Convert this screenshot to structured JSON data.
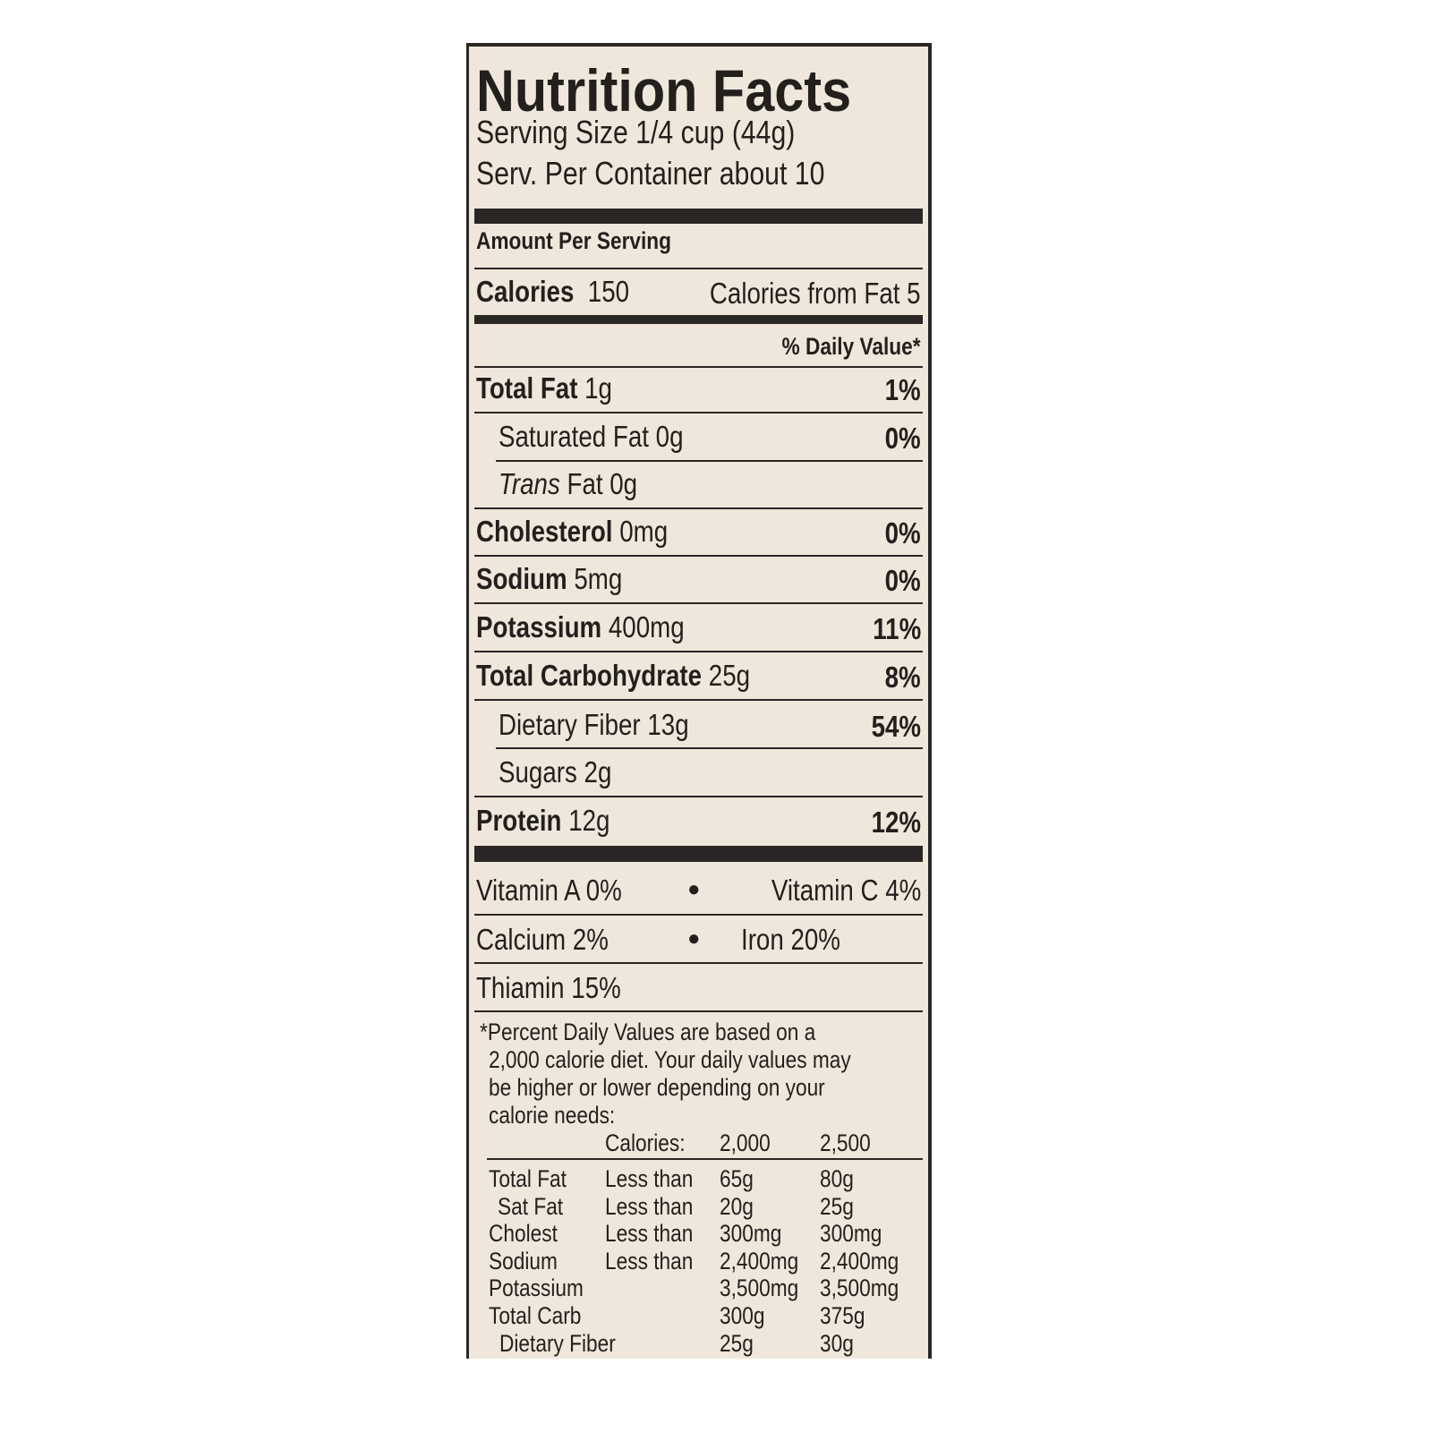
{
  "label": {
    "title": "Nutrition Facts",
    "serving_size": "Serving Size 1/4 cup (44g)",
    "servings_per_container": "Serv. Per Container about 10",
    "amount_per_serving": "Amount Per Serving",
    "calories_label": "Calories",
    "calories_value": "150",
    "calories_from_fat": "Calories from Fat 5",
    "daily_value_header": "% Daily Value*",
    "nutrients": [
      {
        "name": "Total Fat",
        "amount": "1g",
        "dv": "1%"
      },
      {
        "name": "Saturated Fat",
        "amount": "0g",
        "dv": "0%"
      },
      {
        "name": "Trans",
        "name_suffix": "Fat",
        "amount": "0g",
        "dv": ""
      },
      {
        "name": "Cholesterol",
        "amount": "0mg",
        "dv": "0%"
      },
      {
        "name": "Sodium",
        "amount": "5mg",
        "dv": "0%"
      },
      {
        "name": "Potassium",
        "amount": "400mg",
        "dv": "11%"
      },
      {
        "name": "Total Carbohydrate",
        "amount": "25g",
        "dv": "8%"
      },
      {
        "name": "Dietary Fiber",
        "amount": "13g",
        "dv": "54%"
      },
      {
        "name": "Sugars",
        "amount": "2g",
        "dv": ""
      },
      {
        "name": "Protein",
        "amount": "12g",
        "dv": "12%"
      }
    ],
    "vitamins": {
      "vitamin_a": "Vitamin A 0%",
      "vitamin_c": "Vitamin C 4%",
      "calcium": "Calcium 2%",
      "iron": "Iron 20%",
      "thiamin": "Thiamin 15%",
      "bullet": "●"
    },
    "footnote": [
      "*Percent Daily Values are based on a",
      "2,000 calorie diet. Your daily values may",
      "be higher or lower depending on your",
      "calorie needs:"
    ],
    "reference_table": {
      "header": [
        "Calories:",
        "2,000",
        "2,500"
      ],
      "rows": [
        {
          "nutrient": "Total Fat",
          "qualifier": "Less than",
          "c2000": "65g",
          "c2500": "80g"
        },
        {
          "nutrient": "Sat Fat",
          "qualifier": "Less than",
          "c2000": "20g",
          "c2500": "25g"
        },
        {
          "nutrient": "Cholest",
          "qualifier": "Less than",
          "c2000": "300mg",
          "c2500": "300mg"
        },
        {
          "nutrient": "Sodium",
          "qualifier": "Less than",
          "c2000": "2,400mg",
          "c2500": "2,400mg"
        },
        {
          "nutrient": "Potassium",
          "qualifier": "",
          "c2000": "3,500mg",
          "c2500": "3,500mg"
        },
        {
          "nutrient": "Total Carb",
          "qualifier": "",
          "c2000": "300g",
          "c2500": "375g"
        },
        {
          "nutrient": "Dietary Fiber",
          "qualifier": "",
          "c2000": "25g",
          "c2500": "30g"
        }
      ]
    },
    "colors": {
      "background": "#efe7db",
      "ink": "#231f1d"
    }
  }
}
